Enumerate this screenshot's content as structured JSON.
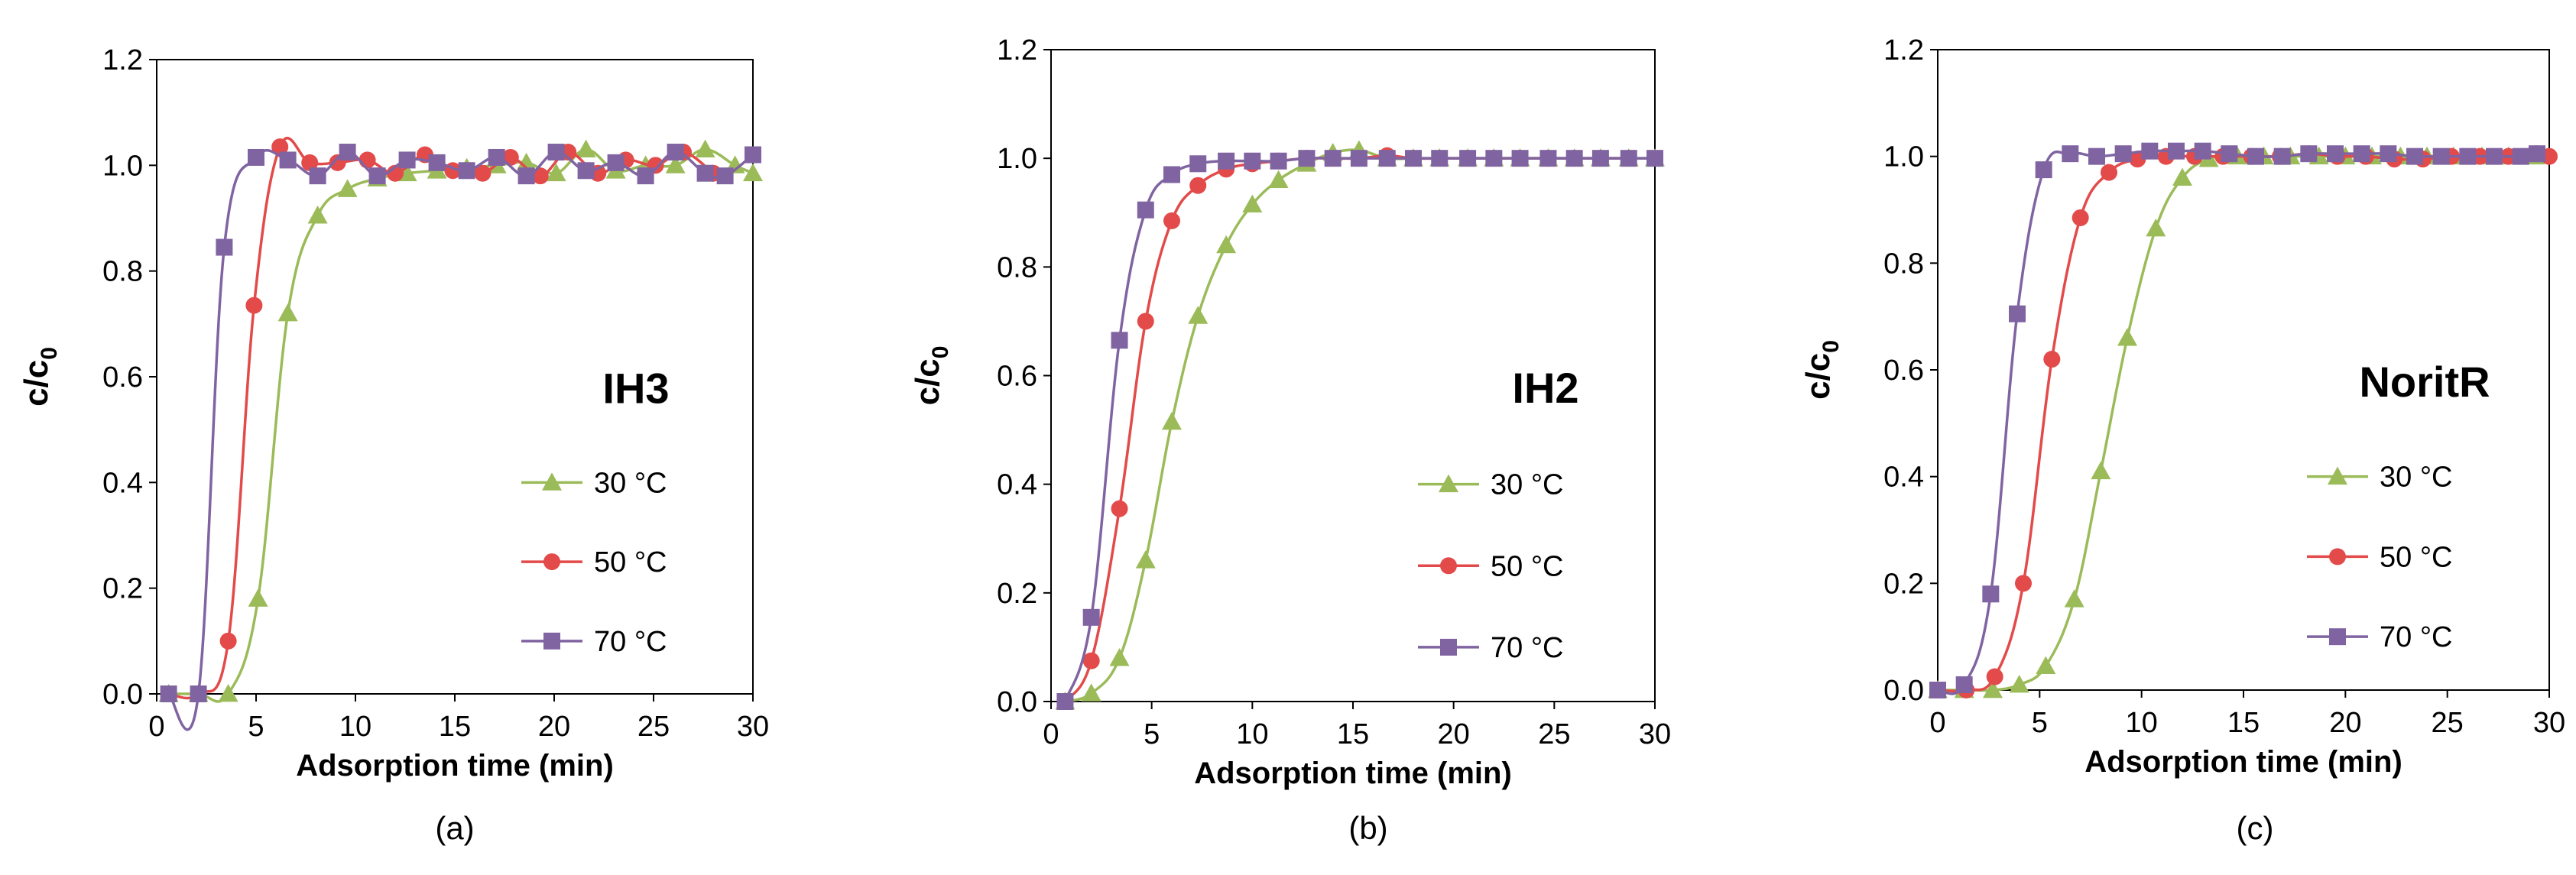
{
  "colors": {
    "30 °C": "#9BBB59",
    "50 °C": "#E34A4A",
    "70 °C": "#8064A2",
    "axis": "#7f7f7f",
    "frame": "#000000"
  },
  "chart_data": [
    {
      "type": "line",
      "caption": "(a)",
      "sample": "IH3",
      "xlabel": "Adsorption time (min)",
      "ylabel": "c/c",
      "ylabel_subscript": "0",
      "xlim": [
        0,
        30
      ],
      "ylim": [
        0,
        1.2
      ],
      "xticks": [
        "0",
        "5",
        "10",
        "15",
        "20",
        "25",
        "30"
      ],
      "yticks": [
        "0.0",
        "0.2",
        "0.4",
        "0.6",
        "0.8",
        "1.0",
        "1.2"
      ],
      "legend_position": "lower-right",
      "series": [
        {
          "name": "30 °C",
          "marker": "triangle",
          "x": [
            0.6,
            2.1,
            3.6,
            5.1,
            6.6,
            8.1,
            9.6,
            11.1,
            12.6,
            14.1,
            15.6,
            17.1,
            18.6,
            20.1,
            21.6,
            23.1,
            24.6,
            26.1,
            27.6,
            29.1,
            30
          ],
          "y": [
            0,
            0,
            0,
            0.18,
            0.72,
            0.905,
            0.955,
            0.975,
            0.985,
            0.99,
            0.995,
            1.0,
            1.005,
            0.985,
            1.03,
            0.99,
            1.0,
            1.0,
            1.03,
            1.0,
            0.985
          ]
        },
        {
          "name": "50 °C",
          "marker": "circle",
          "x": [
            0.6,
            2.1,
            3.6,
            4.9,
            6.2,
            7.7,
            9.1,
            10.6,
            12.0,
            13.5,
            14.9,
            16.4,
            17.8,
            19.3,
            20.7,
            22.2,
            23.6,
            25.1,
            26.5,
            28.0
          ],
          "y": [
            0,
            0,
            0.1,
            0.735,
            1.035,
            1.005,
            1.005,
            1.01,
            0.985,
            1.02,
            0.99,
            0.985,
            1.015,
            0.98,
            1.025,
            0.985,
            1.01,
            1.0,
            1.025,
            0.985
          ]
        },
        {
          "name": "70 °C",
          "marker": "square",
          "x": [
            0.6,
            2.1,
            3.4,
            5.0,
            6.6,
            8.1,
            9.6,
            11.1,
            12.6,
            14.1,
            15.6,
            17.1,
            18.6,
            20.1,
            21.6,
            23.1,
            24.6,
            26.1,
            27.6,
            28.6,
            30
          ],
          "y": [
            0,
            0,
            0.845,
            1.015,
            1.01,
            0.98,
            1.025,
            0.98,
            1.01,
            1.005,
            0.99,
            1.015,
            0.98,
            1.025,
            0.99,
            1.005,
            0.98,
            1.025,
            0.985,
            0.98,
            1.02
          ]
        }
      ]
    },
    {
      "type": "line",
      "caption": "(b)",
      "sample": "IH2",
      "xlabel": "Adsorption time (min)",
      "ylabel": "c/c",
      "ylabel_subscript": "0",
      "xlim": [
        0,
        30
      ],
      "ylim": [
        0,
        1.2
      ],
      "xticks": [
        "0",
        "5",
        "10",
        "15",
        "20",
        "25",
        "30"
      ],
      "yticks": [
        "0.0",
        "0.2",
        "0.4",
        "0.6",
        "0.8",
        "1.0",
        "1.2"
      ],
      "legend_position": "lower-right",
      "series": [
        {
          "name": "30 °C",
          "marker": "triangle",
          "x": [
            0.7,
            2.0,
            3.4,
            4.7,
            6.0,
            7.3,
            8.7,
            10.0,
            11.3,
            12.7,
            14.0,
            15.3,
            16.7,
            18.0,
            19.3,
            20.7,
            22.0,
            23.3,
            24.7,
            26.0,
            27.3,
            28.7,
            30
          ],
          "y": [
            0,
            0.015,
            0.08,
            0.26,
            0.515,
            0.71,
            0.84,
            0.915,
            0.96,
            0.99,
            1.01,
            1.015,
            1.0,
            1.0,
            1.0,
            1.0,
            1.0,
            1.0,
            1.0,
            1.0,
            1.0,
            1.0,
            1.0
          ]
        },
        {
          "name": "50 °C",
          "marker": "circle",
          "x": [
            0.7,
            2.0,
            3.4,
            4.7,
            6.0,
            7.3,
            8.7,
            10.0,
            11.3,
            12.7,
            14.0,
            15.3,
            16.7,
            18.0,
            19.3,
            20.7,
            22.0,
            23.3,
            24.7,
            26.0,
            27.3,
            28.7
          ],
          "y": [
            0,
            0.075,
            0.355,
            0.7,
            0.885,
            0.95,
            0.98,
            0.99,
            0.995,
            1.0,
            1.0,
            1.0,
            1.005,
            1.0,
            1.0,
            1.0,
            1.0,
            1.0,
            1.0,
            1.0,
            1.0,
            1.0
          ]
        },
        {
          "name": "70 °C",
          "marker": "square",
          "x": [
            0.7,
            2.0,
            3.4,
            4.7,
            6.0,
            7.3,
            8.7,
            10.0,
            11.3,
            12.7,
            14.0,
            15.3,
            16.7,
            18.0,
            19.3,
            20.7,
            22.0,
            23.3,
            24.7,
            26.0,
            27.3,
            28.7,
            30
          ],
          "y": [
            0,
            0.155,
            0.665,
            0.905,
            0.97,
            0.99,
            0.995,
            0.995,
            0.995,
            1.0,
            1.0,
            1.0,
            1.0,
            1.0,
            1.0,
            1.0,
            1.0,
            1.0,
            1.0,
            1.0,
            1.0,
            1.0,
            1.0
          ]
        }
      ]
    },
    {
      "type": "line",
      "caption": "(c)",
      "sample": "NoritR",
      "xlabel": "Adsorption time (min)",
      "ylabel": "c/c",
      "ylabel_subscript": "0",
      "xlim": [
        0,
        30
      ],
      "ylim": [
        0,
        1.2
      ],
      "xticks": [
        "0",
        "5",
        "10",
        "15",
        "20",
        "25",
        "30"
      ],
      "yticks": [
        "0.0",
        "0.2",
        "0.4",
        "0.6",
        "0.8",
        "1.0",
        "1.2"
      ],
      "legend_position": "lower-right",
      "series": [
        {
          "name": "30 °C",
          "marker": "triangle",
          "x": [
            0,
            1.3,
            2.7,
            4.0,
            5.3,
            6.7,
            8.0,
            9.3,
            10.7,
            12.0,
            13.3,
            14.7,
            16.0,
            17.3,
            18.7,
            20.0,
            21.3,
            22.7,
            24.0,
            25.3,
            26.7,
            28.0,
            29.3
          ],
          "y": [
            0,
            0,
            0,
            0.01,
            0.045,
            0.17,
            0.41,
            0.66,
            0.865,
            0.96,
            0.995,
            1.0,
            1.0,
            1.0,
            1.0,
            1.0,
            1.0,
            1.0,
            1.0,
            1.0,
            1.0,
            1.0,
            1.0
          ]
        },
        {
          "name": "50 °C",
          "marker": "circle",
          "x": [
            0,
            1.4,
            2.8,
            4.2,
            5.6,
            7.0,
            8.4,
            9.8,
            11.2,
            12.6,
            14.0,
            15.4,
            16.8,
            18.2,
            19.6,
            21.0,
            22.4,
            23.8,
            25.2,
            26.6,
            28.0,
            29.4,
            30
          ],
          "y": [
            0,
            0,
            0.025,
            0.2,
            0.62,
            0.885,
            0.97,
            0.995,
            1.0,
            1.0,
            1.0,
            1.0,
            1.0,
            1.005,
            1.0,
            1.0,
            0.995,
            0.995,
            1.0,
            1.0,
            1.0,
            1.005,
            1.0
          ]
        },
        {
          "name": "70 °C",
          "marker": "square",
          "x": [
            0,
            1.3,
            2.6,
            3.9,
            5.2,
            6.5,
            7.8,
            9.1,
            10.4,
            11.7,
            13.0,
            14.3,
            15.6,
            16.9,
            18.2,
            19.5,
            20.8,
            22.1,
            23.4,
            24.7,
            26.0,
            27.3,
            28.6,
            29.4
          ],
          "y": [
            0,
            0.01,
            0.18,
            0.705,
            0.975,
            1.005,
            1.0,
            1.005,
            1.01,
            1.01,
            1.01,
            1.005,
            1.0,
            1.0,
            1.005,
            1.005,
            1.005,
            1.005,
            1.0,
            1.0,
            1.0,
            1.0,
            1.0,
            1.005
          ]
        }
      ]
    }
  ]
}
